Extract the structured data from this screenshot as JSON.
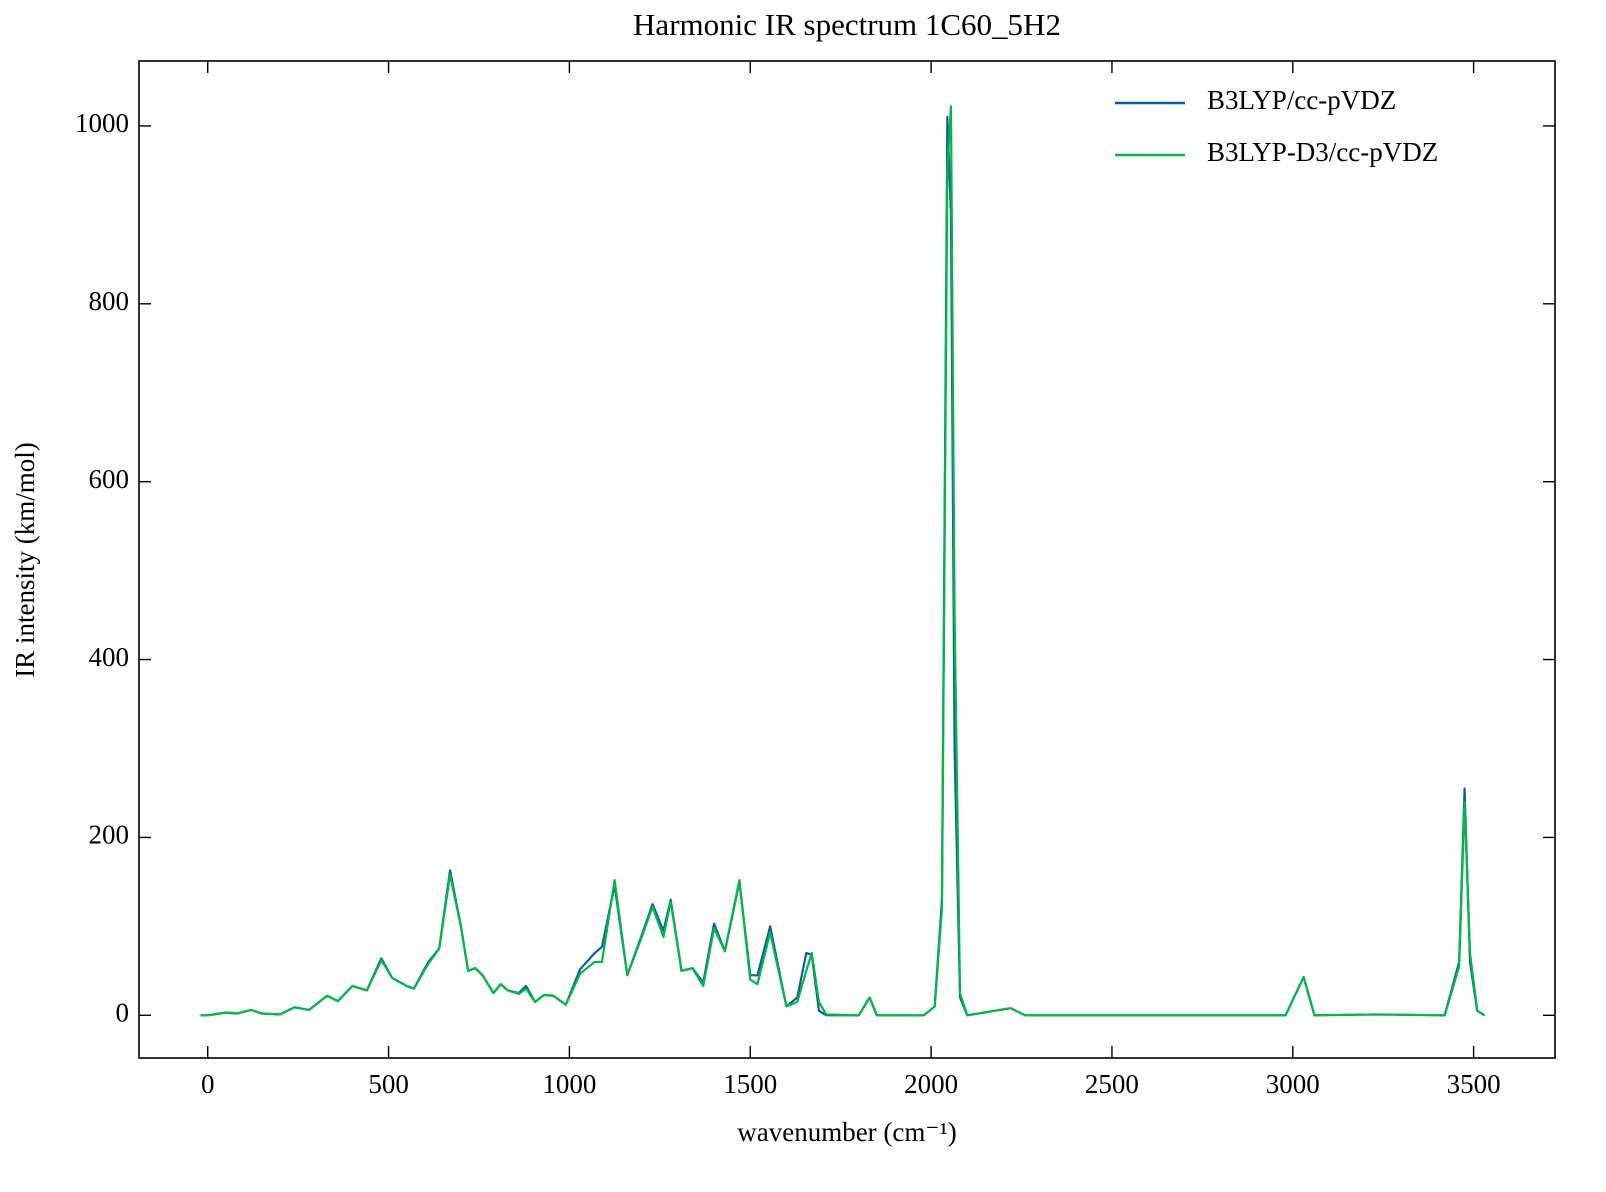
{
  "chart_data": {
    "type": "line",
    "title": "Harmonic IR spectrum 1C60_5H2",
    "xlabel": "wavenumber (cm⁻¹)",
    "ylabel": "IR intensity (km/mol)",
    "x": [
      -20,
      0,
      50,
      80,
      120,
      150,
      200,
      240,
      280,
      330,
      360,
      400,
      440,
      480,
      510,
      550,
      570,
      610,
      640,
      670,
      700,
      720,
      740,
      760,
      790,
      810,
      830,
      860,
      880,
      905,
      930,
      955,
      990,
      1030,
      1070,
      1090,
      1125,
      1160,
      1200,
      1230,
      1260,
      1280,
      1310,
      1340,
      1370,
      1400,
      1430,
      1470,
      1500,
      1520,
      1555,
      1600,
      1630,
      1655,
      1670,
      1690,
      1710,
      1800,
      1830,
      1850,
      1980,
      2010,
      2030,
      2045,
      2055,
      2065,
      2080,
      2100,
      2220,
      2260,
      2980,
      3030,
      3060,
      3230,
      3420,
      3460,
      3475,
      3490,
      3510,
      3530
    ],
    "series": [
      {
        "name": "B3LYP/cc-pVDZ",
        "color": "#0C5DA5",
        "values": [
          0,
          0,
          3,
          2,
          6,
          2,
          1,
          9,
          6,
          22,
          16,
          33,
          28,
          64,
          42,
          33,
          30,
          60,
          75,
          163,
          100,
          50,
          53,
          45,
          25,
          35,
          28,
          25,
          33,
          15,
          23,
          22,
          12,
          52,
          70,
          77,
          146,
          45,
          90,
          125,
          95,
          130,
          50,
          53,
          37,
          103,
          72,
          150,
          45,
          45,
          100,
          10,
          20,
          70,
          68,
          5,
          0,
          0,
          20,
          0,
          0,
          10,
          130,
          1010,
          900,
          300,
          20,
          0,
          8,
          0,
          0,
          43,
          0,
          1,
          0,
          60,
          255,
          60,
          5,
          0
        ]
      },
      {
        "name": "B3LYP-D3/cc-pVDZ",
        "color": "#00B945",
        "values": [
          0,
          0,
          3,
          2,
          6,
          2,
          1,
          9,
          6,
          22,
          16,
          33,
          28,
          62,
          42,
          33,
          30,
          58,
          75,
          158,
          100,
          50,
          53,
          45,
          25,
          35,
          28,
          24,
          30,
          15,
          23,
          22,
          12,
          47,
          60,
          60,
          152,
          45,
          88,
          122,
          88,
          128,
          50,
          53,
          33,
          98,
          72,
          152,
          40,
          35,
          93,
          10,
          15,
          50,
          70,
          15,
          1,
          0,
          20,
          0,
          0,
          10,
          120,
          950,
          1022,
          450,
          25,
          0,
          8,
          0,
          0,
          43,
          0,
          1,
          0,
          55,
          240,
          70,
          5,
          0
        ]
      }
    ],
    "xlim": [
      -190,
      3725
    ],
    "ylim": [
      -48,
      1073
    ],
    "xticks": [
      0,
      500,
      1000,
      1500,
      2000,
      2500,
      3000,
      3500
    ],
    "yticks": [
      0,
      200,
      400,
      600,
      800,
      1000
    ],
    "legend": "upper right"
  }
}
